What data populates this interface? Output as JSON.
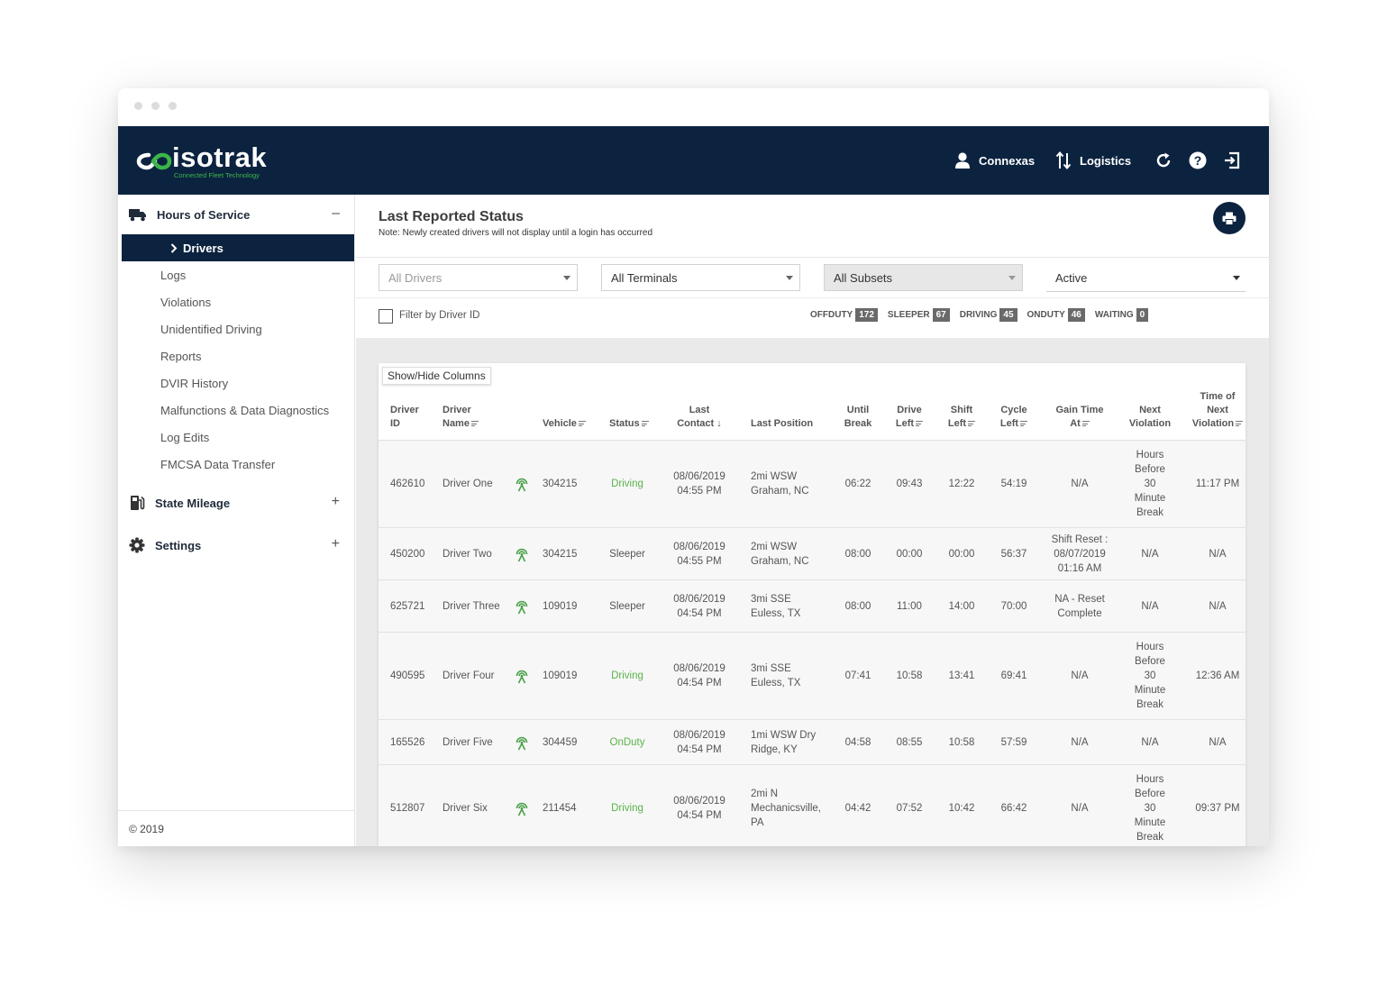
{
  "brand": {
    "name": "isotrak",
    "tagline": "Connected Fleet Technology",
    "accent": "#3bb54a",
    "navy": "#0c2340"
  },
  "navbar": {
    "user": "Connexas",
    "company": "Logistics",
    "icons": [
      "user-icon",
      "switch-arrows-icon",
      "refresh-icon",
      "help-icon",
      "logout-icon"
    ]
  },
  "sidebar": {
    "hos": {
      "label": "Hours of Service",
      "toggle": "–",
      "icon": "truck-icon"
    },
    "active": "Drivers",
    "items": [
      "Logs",
      "Violations",
      "Unidentified Driving",
      "Reports",
      "DVIR History",
      "Malfunctions & Data Diagnostics",
      "Log Edits",
      "FMCSA Data Transfer"
    ],
    "mileage": {
      "label": "State Mileage",
      "toggle": "+",
      "icon": "fuel-pump-icon"
    },
    "settings": {
      "label": "Settings",
      "toggle": "+",
      "icon": "gear-icon"
    },
    "footer": "© 2019"
  },
  "page": {
    "title": "Last Reported Status",
    "note": "Note: Newly created drivers will not display until a login has occurred",
    "print_icon": "printer-icon"
  },
  "filters": {
    "drivers": "All Drivers",
    "terminals": "All Terminals",
    "subsets": "All Subsets",
    "status": "Active",
    "filter_label": "Filter by Driver ID"
  },
  "counts": [
    {
      "label": "OFFDUTY",
      "value": "172"
    },
    {
      "label": "SLEEPER",
      "value": "67"
    },
    {
      "label": "DRIVING",
      "value": "45"
    },
    {
      "label": "ONDUTY",
      "value": "46"
    },
    {
      "label": "WAITING",
      "value": "0"
    }
  ],
  "table": {
    "showhide": "Show/Hide Columns",
    "headers": {
      "driver_id": [
        "Driver",
        "ID"
      ],
      "driver_name": [
        "Driver",
        "Name"
      ],
      "vehicle": "Vehicle",
      "status": "Status",
      "last_contact": [
        "Last",
        "Contact"
      ],
      "last_position": "Last Position",
      "until_break": [
        "Until",
        "Break"
      ],
      "drive_left": [
        "Drive",
        "Left"
      ],
      "shift_left": [
        "Shift",
        "Left"
      ],
      "cycle_left": [
        "Cycle",
        "Left"
      ],
      "gain_time": [
        "Gain Time",
        "At"
      ],
      "next_violation": [
        "Next",
        "Violation"
      ],
      "time_next_violation": [
        "Time of",
        "Next",
        "Violation"
      ]
    },
    "rows": [
      {
        "id": "462610",
        "name": "Driver One",
        "vehicle": "304215",
        "status": "Driving",
        "green": true,
        "contact": [
          "08/06/2019",
          "04:55 PM"
        ],
        "position": [
          "2mi WSW",
          "Graham, NC"
        ],
        "until_break": "06:22",
        "drive_left": "09:43",
        "shift_left": "12:22",
        "cycle_left": "54:19",
        "gain": [
          "N/A"
        ],
        "next": [
          "Hours",
          "Before",
          "30",
          "Minute",
          "Break"
        ],
        "time_next": "11:17 PM"
      },
      {
        "id": "450200",
        "name": "Driver Two",
        "vehicle": "304215",
        "status": "Sleeper",
        "green": false,
        "contact": [
          "08/06/2019",
          "04:55 PM"
        ],
        "position": [
          "2mi WSW",
          "Graham, NC"
        ],
        "until_break": "08:00",
        "drive_left": "00:00",
        "shift_left": "00:00",
        "cycle_left": "56:37",
        "gain": [
          "Shift Reset :",
          "08/07/2019",
          "01:16 AM"
        ],
        "next": [
          "N/A"
        ],
        "time_next": "N/A"
      },
      {
        "id": "625721",
        "name": "Driver Three",
        "vehicle": "109019",
        "status": "Sleeper",
        "green": false,
        "contact": [
          "08/06/2019",
          "04:54 PM"
        ],
        "position": [
          "3mi SSE",
          "Euless, TX"
        ],
        "until_break": "08:00",
        "drive_left": "11:00",
        "shift_left": "14:00",
        "cycle_left": "70:00",
        "gain": [
          "NA - Reset",
          "Complete"
        ],
        "next": [
          "N/A"
        ],
        "time_next": "N/A"
      },
      {
        "id": "490595",
        "name": "Driver Four",
        "vehicle": "109019",
        "status": "Driving",
        "green": true,
        "contact": [
          "08/06/2019",
          "04:54 PM"
        ],
        "position": [
          "3mi SSE",
          "Euless, TX"
        ],
        "until_break": "07:41",
        "drive_left": "10:58",
        "shift_left": "13:41",
        "cycle_left": "69:41",
        "gain": [
          "N/A"
        ],
        "next": [
          "Hours",
          "Before",
          "30",
          "Minute",
          "Break"
        ],
        "time_next": "12:36 AM"
      },
      {
        "id": "165526",
        "name": "Driver Five",
        "vehicle": "304459",
        "status": "OnDuty",
        "green": true,
        "contact": [
          "08/06/2019",
          "04:54 PM"
        ],
        "position": [
          "1mi WSW Dry",
          "Ridge, KY"
        ],
        "until_break": "04:58",
        "drive_left": "08:55",
        "shift_left": "10:58",
        "cycle_left": "57:59",
        "gain": [
          "N/A"
        ],
        "next": [
          "N/A"
        ],
        "time_next": "N/A"
      },
      {
        "id": "512807",
        "name": "Driver Six",
        "vehicle": "211454",
        "status": "Driving",
        "green": true,
        "contact": [
          "08/06/2019",
          "04:54 PM"
        ],
        "position": [
          "2mi N",
          "Mechanicsville,",
          "PA"
        ],
        "until_break": "04:42",
        "drive_left": "07:52",
        "shift_left": "10:42",
        "cycle_left": "66:42",
        "gain": [
          "N/A"
        ],
        "next": [
          "Hours",
          "Before",
          "30",
          "Minute",
          "Break"
        ],
        "time_next": "09:37 PM"
      }
    ]
  }
}
